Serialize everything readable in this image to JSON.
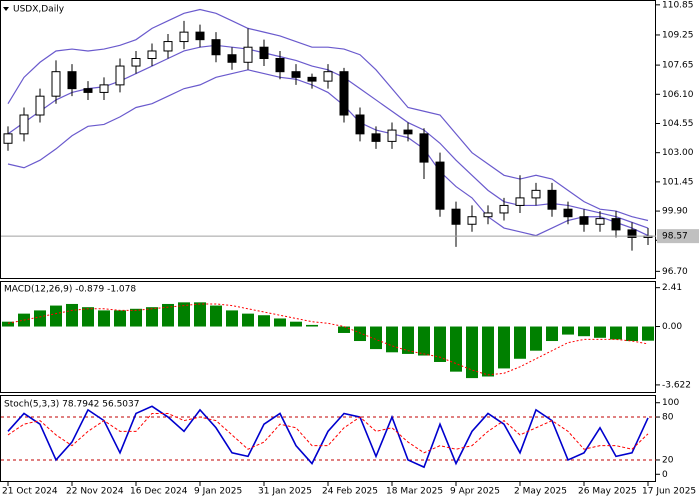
{
  "chart_data": [
    {
      "type": "candlestick",
      "title": "USDX,Daily",
      "categories": [
        "21 Oct 2024",
        null,
        null,
        null,
        "22 Nov 2024",
        null,
        null,
        null,
        "16 Dec 2024",
        null,
        null,
        null,
        "9 Jan 2025",
        null,
        null,
        null,
        "31 Jan 2025",
        null,
        null,
        null,
        "24 Feb 2025",
        null,
        null,
        null,
        "18 Mar 2025",
        null,
        null,
        null,
        "9 Apr 2025",
        null,
        null,
        null,
        "2 May 2025",
        null,
        null,
        null,
        "26 May 2025",
        null,
        null,
        null,
        "17 Jun 2025"
      ],
      "open": [
        103.5,
        104.0,
        105.0,
        106.0,
        107.3,
        106.4,
        106.2,
        106.6,
        107.6,
        108.0,
        108.4,
        108.9,
        109.4,
        109.0,
        108.2,
        107.8,
        108.6,
        108.0,
        107.3,
        107.0,
        106.8,
        107.3,
        105.0,
        104.0,
        103.6,
        104.2,
        104.0,
        102.5,
        100.0,
        99.2,
        99.6,
        99.8,
        100.2,
        100.6,
        101.0,
        100.0,
        99.6,
        99.2,
        99.5,
        98.9,
        98.5
      ],
      "high": [
        104.4,
        105.4,
        106.4,
        107.9,
        107.7,
        106.8,
        107.0,
        108.0,
        108.4,
        108.8,
        109.3,
        110.0,
        109.8,
        109.4,
        108.6,
        109.6,
        109.0,
        108.4,
        107.7,
        107.2,
        107.7,
        107.5,
        105.4,
        104.4,
        104.6,
        104.6,
        104.3,
        103.0,
        100.4,
        100.2,
        100.2,
        100.6,
        101.8,
        101.4,
        101.4,
        100.4,
        100.0,
        99.9,
        99.9,
        99.3,
        99.0
      ],
      "low": [
        103.1,
        103.6,
        104.6,
        105.6,
        106.0,
        105.8,
        105.8,
        106.2,
        107.2,
        107.6,
        108.0,
        108.5,
        108.6,
        107.8,
        107.4,
        107.4,
        107.6,
        106.9,
        106.6,
        106.4,
        106.4,
        104.6,
        103.6,
        103.2,
        103.2,
        103.6,
        101.6,
        99.6,
        98.0,
        98.8,
        99.2,
        99.4,
        99.8,
        100.2,
        99.6,
        99.2,
        98.8,
        98.8,
        98.5,
        97.8,
        98.1
      ],
      "close": [
        104.0,
        105.0,
        106.0,
        107.3,
        106.4,
        106.2,
        106.6,
        107.6,
        108.0,
        108.4,
        108.9,
        109.4,
        109.0,
        108.2,
        107.8,
        108.6,
        108.0,
        107.3,
        107.0,
        106.8,
        107.3,
        105.0,
        104.0,
        103.6,
        104.2,
        104.0,
        102.5,
        100.0,
        99.2,
        99.6,
        99.8,
        100.2,
        100.6,
        101.0,
        100.0,
        99.6,
        99.2,
        99.5,
        98.9,
        98.5,
        98.57
      ],
      "bands": [
        {
          "color": "#6a5acd",
          "values": [
            105.6,
            107.0,
            107.8,
            108.4,
            108.5,
            108.4,
            108.5,
            108.7,
            109.0,
            109.6,
            110.0,
            110.4,
            110.6,
            110.4,
            110.0,
            109.6,
            109.4,
            109.2,
            108.9,
            108.6,
            108.6,
            108.5,
            108.2,
            107.4,
            106.4,
            105.4,
            105.2,
            105.0,
            104.0,
            103.0,
            102.4,
            101.8,
            101.6,
            101.8,
            101.6,
            101.0,
            100.4,
            100.0,
            99.9,
            99.6,
            99.4
          ]
        },
        {
          "color": "#6a5acd",
          "values": [
            104.0,
            104.6,
            105.2,
            105.8,
            106.2,
            106.4,
            106.5,
            106.8,
            107.2,
            107.6,
            108.0,
            108.4,
            108.6,
            108.7,
            108.6,
            108.5,
            108.3,
            108.1,
            107.9,
            107.6,
            107.4,
            107.0,
            106.4,
            105.8,
            105.2,
            104.6,
            104.2,
            103.5,
            102.6,
            101.8,
            101.0,
            100.4,
            100.2,
            100.2,
            100.3,
            100.2,
            100.0,
            99.8,
            99.6,
            99.3,
            99.0
          ]
        },
        {
          "color": "#6a5acd",
          "values": [
            102.4,
            102.2,
            102.6,
            103.2,
            103.9,
            104.4,
            104.5,
            104.9,
            105.4,
            105.6,
            106.0,
            106.4,
            106.6,
            107.0,
            107.2,
            107.4,
            107.2,
            107.0,
            106.9,
            106.6,
            106.2,
            105.5,
            104.6,
            104.2,
            104.0,
            103.8,
            103.2,
            102.0,
            101.2,
            100.6,
            99.6,
            99.0,
            98.8,
            98.6,
            99.0,
            99.4,
            99.6,
            99.6,
            99.3,
            99.0,
            98.6
          ]
        }
      ],
      "last_price": 98.57,
      "ylim": [
        96.4,
        111.0
      ],
      "yticks": [
        110.85,
        109.25,
        107.65,
        {
          "value": 106.1,
          "label": "106.10"
        },
        104.55,
        {
          "value": 103,
          "label": "103.00"
        },
        101.45,
        {
          "value": 99.9,
          "label": "99.90"
        },
        98.35,
        {
          "value": 96.7,
          "label": "96.70"
        }
      ]
    },
    {
      "type": "bar",
      "title": "MACD(12,26,9) -0.879 -1.078",
      "color": "#008000",
      "values": [
        0.3,
        0.8,
        1.0,
        1.3,
        1.4,
        1.2,
        1.0,
        1.0,
        1.1,
        1.2,
        1.4,
        1.5,
        1.5,
        1.3,
        1.0,
        0.8,
        0.7,
        0.5,
        0.3,
        0.1,
        0.0,
        -0.4,
        -0.9,
        -1.4,
        -1.6,
        -1.7,
        -1.8,
        -2.2,
        -2.8,
        -3.2,
        -3.1,
        -2.6,
        -2.0,
        -1.5,
        -0.9,
        -0.5,
        -0.6,
        -0.7,
        -0.8,
        -0.9,
        -0.879
      ],
      "signal": {
        "color": "#ff0000",
        "values": [
          0.2,
          0.4,
          0.6,
          0.8,
          1.0,
          1.1,
          1.1,
          1.0,
          1.0,
          1.1,
          1.2,
          1.3,
          1.4,
          1.4,
          1.3,
          1.1,
          0.9,
          0.7,
          0.5,
          0.3,
          0.2,
          0.0,
          -0.4,
          -0.8,
          -1.2,
          -1.5,
          -1.7,
          -1.9,
          -2.3,
          -2.7,
          -3.0,
          -2.9,
          -2.5,
          -2.0,
          -1.5,
          -1.0,
          -0.8,
          -0.8,
          -0.8,
          -0.9,
          -1.078
        ]
      },
      "ylim": [
        -4.0,
        2.7
      ],
      "yticks": [
        2.41,
        {
          "value": 0,
          "label": "0.00"
        },
        -3.622
      ]
    },
    {
      "type": "line",
      "title": "Stoch(5,3,3) 78.7942 56.5037",
      "series": [
        {
          "color": "#0000cd",
          "values": [
            60,
            85,
            70,
            20,
            45,
            90,
            75,
            30,
            85,
            95,
            80,
            60,
            90,
            65,
            30,
            25,
            70,
            85,
            40,
            15,
            60,
            85,
            80,
            25,
            80,
            20,
            10,
            70,
            15,
            60,
            85,
            70,
            30,
            90,
            75,
            20,
            30,
            65,
            25,
            30,
            78.7942
          ]
        },
        {
          "color": "#ff0000",
          "dashed": true,
          "values": [
            55,
            70,
            75,
            55,
            40,
            60,
            75,
            60,
            60,
            85,
            85,
            75,
            80,
            75,
            55,
            35,
            45,
            70,
            65,
            40,
            40,
            65,
            80,
            60,
            65,
            45,
            30,
            40,
            35,
            40,
            60,
            75,
            55,
            65,
            75,
            60,
            35,
            40,
            40,
            35,
            56.5037
          ]
        }
      ],
      "levels": [
        80,
        20
      ],
      "ylim": [
        -8,
        108
      ],
      "yticks": [
        100,
        80,
        20,
        0
      ]
    }
  ]
}
